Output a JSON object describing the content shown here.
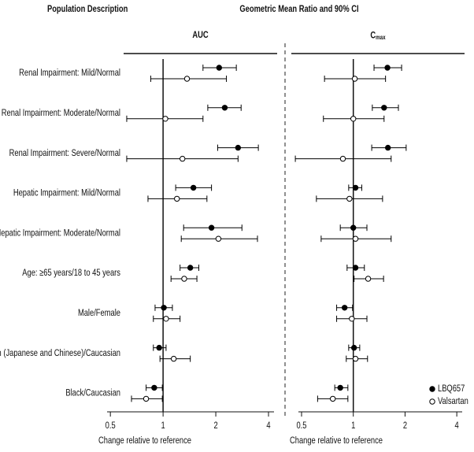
{
  "chart_data": {
    "type": "forest",
    "title": "Geometric Mean Ratio and 90% CI",
    "row_header": "Population Description",
    "categories": [
      "Renal Impairment: Mild/Normal",
      "Renal Impairment: Moderate/Normal",
      "Renal Impairment: Severe/Normal",
      "Hepatic Impairment: Mild/Normal",
      "Hepatic Impairment: Moderate/Normal",
      "Age: ≥65 years/18 to 45 years",
      "Male/Female",
      "Asian (Japanese and Chinese)/Caucasian",
      "Black/Caucasian"
    ],
    "log_scale": true,
    "reference": 1,
    "legend": "lower right",
    "series": [
      {
        "name": "LBQ657",
        "color": "#000000",
        "marker": "filled"
      },
      {
        "name": "Valsartan",
        "color": "#000000",
        "marker": "open"
      }
    ],
    "panels": [
      {
        "title": "AUC",
        "xlabel": "Change relative to reference",
        "xlim": [
          0.45,
          4.3
        ],
        "xticks": [
          0.5,
          1,
          2,
          4
        ],
        "series": [
          {
            "values": [
              2.09,
              2.25,
              2.68,
              1.49,
              1.89,
              1.43,
              1.01,
              0.95,
              0.89
            ],
            "lower": [
              1.69,
              1.8,
              2.05,
              1.18,
              1.31,
              1.25,
              0.9,
              0.88,
              0.8
            ],
            "upper": [
              2.62,
              2.79,
              3.5,
              1.89,
              2.82,
              1.6,
              1.13,
              1.04,
              0.99
            ]
          },
          {
            "values": [
              1.37,
              1.03,
              1.29,
              1.2,
              2.07,
              1.32,
              1.04,
              1.15,
              0.8
            ],
            "lower": [
              0.85,
              0.62,
              0.62,
              0.82,
              1.27,
              1.11,
              0.88,
              0.96,
              0.66
            ],
            "upper": [
              2.3,
              1.69,
              2.68,
              1.78,
              3.46,
              1.56,
              1.25,
              1.43,
              0.99
            ]
          }
        ]
      },
      {
        "title": "C",
        "title_sub": "max",
        "xlabel": "Change relative to reference",
        "xlim": [
          0.45,
          4.3
        ],
        "xticks": [
          0.5,
          1,
          2,
          4
        ],
        "series": [
          {
            "values": [
              1.58,
              1.51,
              1.59,
              1.03,
              1.0,
              1.03,
              0.89,
              1.01,
              0.84
            ],
            "lower": [
              1.32,
              1.29,
              1.28,
              0.94,
              0.84,
              0.92,
              0.8,
              0.94,
              0.78
            ],
            "upper": [
              1.91,
              1.83,
              2.03,
              1.12,
              1.2,
              1.16,
              0.99,
              1.09,
              0.93
            ]
          },
          {
            "values": [
              1.02,
              1.0,
              0.87,
              0.95,
              1.03,
              1.22,
              0.98,
              1.03,
              0.76
            ],
            "lower": [
              0.68,
              0.67,
              0.46,
              0.61,
              0.65,
              1.01,
              0.8,
              0.91,
              0.62
            ],
            "upper": [
              1.54,
              1.51,
              1.66,
              1.48,
              1.66,
              1.5,
              1.2,
              1.21,
              0.93
            ]
          }
        ]
      }
    ]
  }
}
